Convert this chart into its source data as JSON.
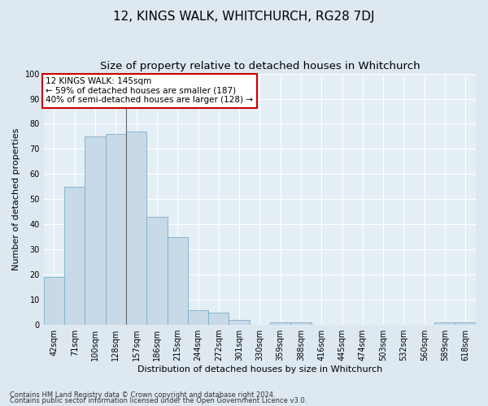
{
  "title": "12, KINGS WALK, WHITCHURCH, RG28 7DJ",
  "subtitle": "Size of property relative to detached houses in Whitchurch",
  "xlabel": "Distribution of detached houses by size in Whitchurch",
  "ylabel": "Number of detached properties",
  "footnote1": "Contains HM Land Registry data © Crown copyright and database right 2024.",
  "footnote2": "Contains public sector information licensed under the Open Government Licence v3.0.",
  "categories": [
    "42sqm",
    "71sqm",
    "100sqm",
    "128sqm",
    "157sqm",
    "186sqm",
    "215sqm",
    "244sqm",
    "272sqm",
    "301sqm",
    "330sqm",
    "359sqm",
    "388sqm",
    "416sqm",
    "445sqm",
    "474sqm",
    "503sqm",
    "532sqm",
    "560sqm",
    "589sqm",
    "618sqm"
  ],
  "values": [
    19,
    55,
    75,
    76,
    77,
    43,
    35,
    6,
    5,
    2,
    0,
    1,
    1,
    0,
    0,
    0,
    0,
    0,
    0,
    1,
    1
  ],
  "bar_color": "#c8d9e8",
  "bar_edge_color": "#7aafc8",
  "annotation_line1": "12 KINGS WALK: 145sqm",
  "annotation_line2": "← 59% of detached houses are smaller (187)",
  "annotation_line3": "40% of semi-detached houses are larger (128) →",
  "annotation_box_color": "#ffffff",
  "annotation_box_edge_color": "#cc0000",
  "vline_bin_index": 4,
  "ylim": [
    0,
    100
  ],
  "yticks": [
    0,
    10,
    20,
    30,
    40,
    50,
    60,
    70,
    80,
    90,
    100
  ],
  "bg_color": "#dde8f0",
  "plot_bg_color": "#e4eef5",
  "grid_color": "#ffffff",
  "title_fontsize": 11,
  "subtitle_fontsize": 9.5,
  "axis_label_fontsize": 8,
  "tick_fontsize": 7,
  "annot_fontsize": 7.5,
  "footnote_fontsize": 6
}
